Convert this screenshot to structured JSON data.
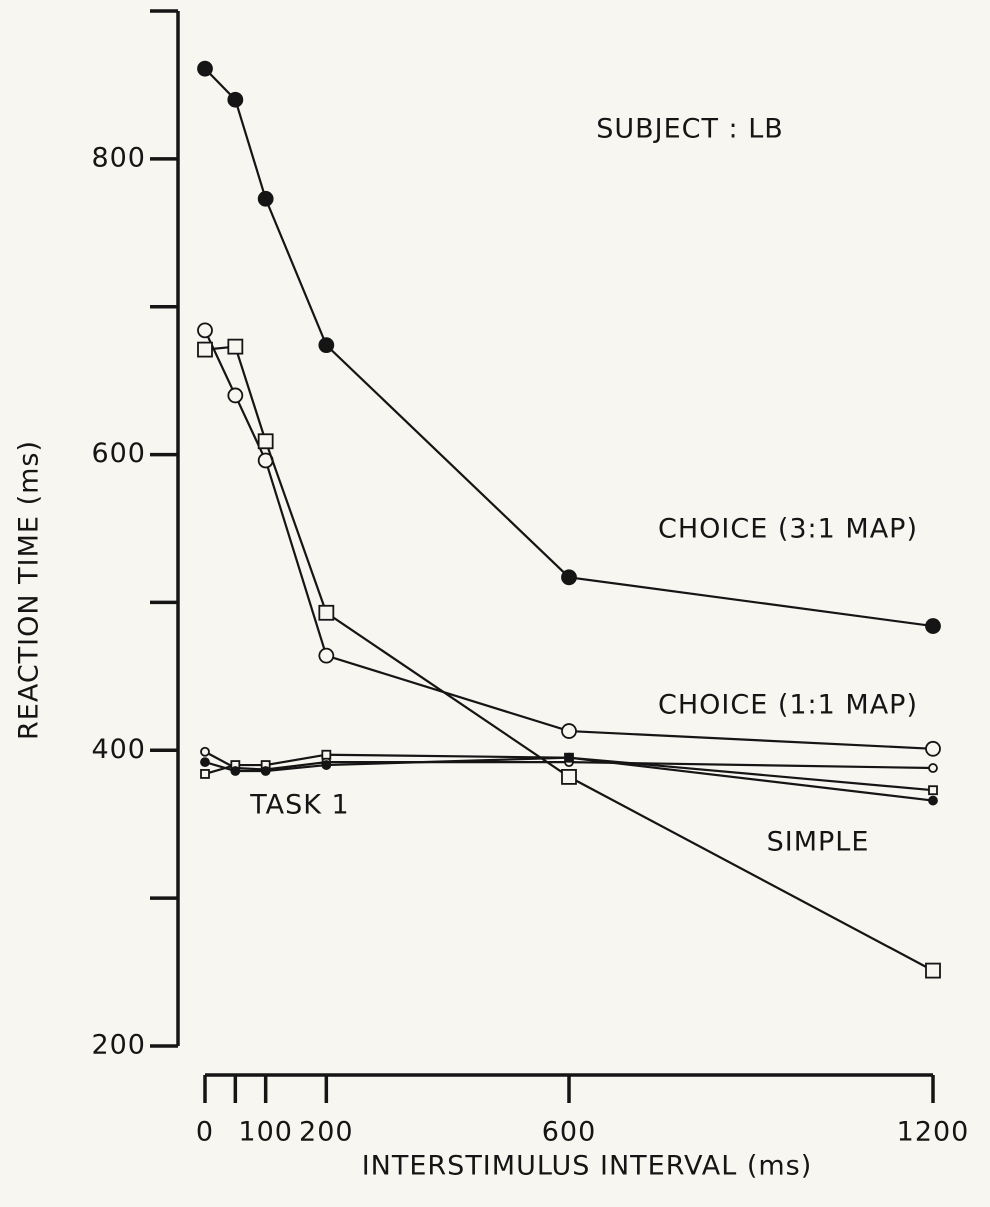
{
  "chart_data": {
    "type": "line",
    "annotation": "SUBJECT : LB",
    "task_label": "TASK 1",
    "xlabel": "INTERSTIMULUS INTERVAL (ms)",
    "ylabel": "REACTION TIME (ms)",
    "x": [
      0,
      50,
      100,
      200,
      600,
      1200
    ],
    "xlim": [
      0,
      1200
    ],
    "xticks": [
      0,
      100,
      200,
      600,
      1200
    ],
    "xminorticks": [
      50
    ],
    "ylim": [
      200,
      900
    ],
    "yticks": [
      200,
      400,
      600,
      800
    ],
    "yminorticks": [
      300,
      500,
      700,
      900
    ],
    "series": [
      {
        "name": "CHOICE (3:1 MAP)",
        "color": "#151515",
        "marker": "filled-circle",
        "marker_size": "large",
        "values": [
          861,
          840,
          773,
          674,
          517,
          484
        ]
      },
      {
        "name": "CHOICE (1:1 MAP)",
        "color": "#151515",
        "marker": "open-circle",
        "marker_size": "large",
        "values": [
          684,
          640,
          596,
          464,
          413,
          401
        ]
      },
      {
        "name": "SIMPLE",
        "color": "#151515",
        "marker": "open-square",
        "marker_size": "large",
        "values": [
          671,
          673,
          609,
          493,
          382,
          251
        ]
      },
      {
        "color": "#151515",
        "marker": "open-circle",
        "marker_size": "small",
        "values": [
          399,
          388,
          387,
          392,
          392,
          388
        ]
      },
      {
        "color": "#151515",
        "marker": "open-square",
        "marker_size": "small",
        "values": [
          384,
          390,
          390,
          397,
          395,
          373
        ]
      },
      {
        "color": "#151515",
        "marker": "filled-circle",
        "marker_size": "small",
        "values": [
          392,
          386,
          386,
          390,
          395,
          366
        ]
      }
    ]
  }
}
